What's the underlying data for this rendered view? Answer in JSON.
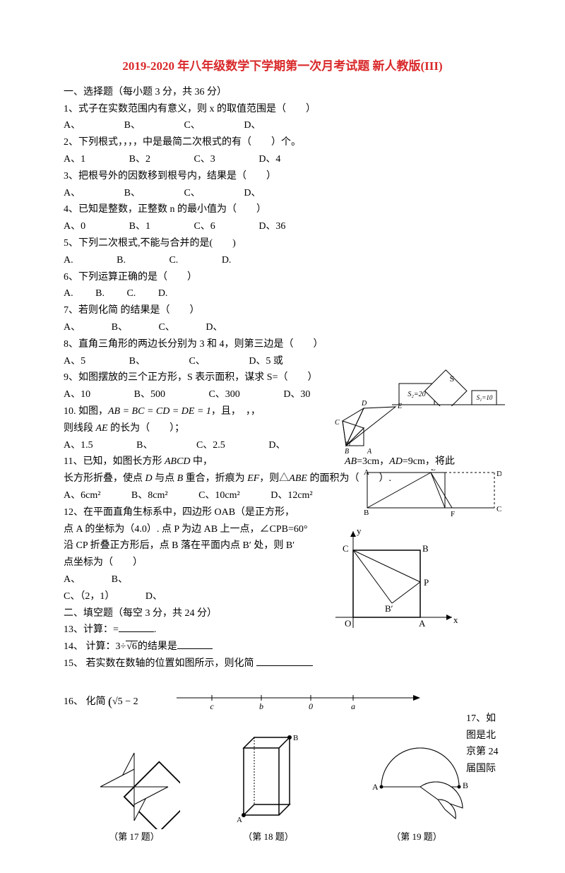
{
  "title": "2019-2020 年八年级数学下学期第一次月考试题 新人教版(III)",
  "s1": {
    "head": "一、选择题（每小题 3 分，共 36 分）"
  },
  "q1": {
    "text": "1、式子在实数范围内有意义，则 x 的取值范围是（　　）",
    "a": "A、",
    "b": "B、",
    "c": "C、",
    "d": "D、"
  },
  "q2": {
    "text": "2、下列根式，，，，中是最简二次根式的有（　　）个。",
    "a": "A、1",
    "b": "B、2",
    "c": "C、3",
    "d": "D、4"
  },
  "q3": {
    "text": "3、把根号外的因数移到根号内，结果是（　　）",
    "a": "A、",
    "b": "B、",
    "c": "C、",
    "d": "D、"
  },
  "q4": {
    "text": "4、已知是整数，正整数 n 的最小值为（　　）",
    "a": "A、0",
    "b": "B、1",
    "c": "C、6",
    "d": "D、36"
  },
  "q5": {
    "text": "5、下列二次根式,不能与合并的是(　　)",
    "a": "A.",
    "b": "B.",
    "c": "C.",
    "d": "D."
  },
  "q6": {
    "text": "6、下列运算正确的是（　　）",
    "a": "A.",
    "b": "B.",
    "c": "C.",
    "d": "D."
  },
  "q7": {
    "text": "7、若则化简 的结果是（　　）",
    "a": "A、",
    "b": "B、",
    "c": "C、",
    "d": "D、"
  },
  "q8": {
    "text": "8、直角三角形的两边长分别为 3 和 4，则第三边是（　　）",
    "a": "A、5",
    "b": "B、",
    "c": "C、",
    "d": "D、5 或"
  },
  "q9": {
    "text": "9、如图摆放的三个正方形，S 表示面积，谋求 S=（　　）",
    "a": "A、10",
    "b": "B、500",
    "c": "C、300",
    "d": "D、30",
    "fig": {
      "s2": "S₂=20",
      "s": "S",
      "s1": "S₁=10",
      "colors": {
        "box": "#ffffff",
        "diamond": "#ffffff",
        "stroke": "#000000"
      }
    }
  },
  "q10": {
    "pre": "10. 如图，",
    "formula": "AB = BC = CD = DE = 1",
    "post": "，且，　，，",
    "text2_pre": "则线段 ",
    "text2_var": "AE",
    "text2_post": " 的长为（　　）；",
    "a": "A、1.5",
    "b": "B、",
    "c": "C、2.5",
    "d": "D、",
    "fig": {
      "A": "A",
      "B": "B",
      "C": "C",
      "D": "D",
      "E": "E",
      "stroke": "#000000"
    }
  },
  "q11": {
    "pre": "11、已知，如图长方形 ",
    "var1": "ABCD",
    "mid": " 中，",
    "dim1_var": "AB",
    "dim1_eq": "=3cm，",
    "dim2_var": "AD",
    "dim2_eq": "=9cm，将此",
    "line2_a": "长方形折叠，使点 ",
    "line2_v1": "D",
    "line2_b": " 与点 ",
    "line2_v2": "B",
    "line2_c": " 重合，折痕为 ",
    "line2_v3": "EF",
    "line2_d": "，则△",
    "line2_v4": "ABE",
    "line2_e": " 的面积为（　　）.",
    "a": "A、6cm²",
    "b": "B、8cm²",
    "c": "C、10cm²",
    "d": "D、12cm²",
    "fig": {
      "A": "A",
      "B": "B",
      "C": "C",
      "D": "D",
      "E": "E",
      "F": "F",
      "stroke": "#000000"
    }
  },
  "q12": {
    "l1": "12、在平面直角生标系中，四边形 OAB（是正方形，",
    "l2": "点 A 的坐标为（4.0）. 点 P 为边 AB 上一点，∠CPB=60°",
    "l3": "沿 CP 折叠正方形后，点 B 落在平面内点 B′ 处，则 B′",
    "l4": "点坐标为（　　）",
    "a": "A、",
    "b": "B、",
    "c": "C、（2，1）",
    "d": "D、",
    "fig": {
      "O": "O",
      "A": "A",
      "B": "B",
      "C": "C",
      "P": "P",
      "Bp": "B′",
      "x": "x",
      "y": "y",
      "stroke": "#000000"
    }
  },
  "s2": {
    "head": "二、填空题（每空 3 分，共 24 分）"
  },
  "q13": {
    "text": "13、计算：=",
    "tail": "."
  },
  "q14": {
    "text": "14、 计算：3÷",
    "sqrt": "√6",
    "tail": "的结果是"
  },
  "q15": {
    "text": "15、 若实数在数轴的位置如图所示，则化简"
  },
  "q16": {
    "text": "16、 化简",
    "expr_open": "(",
    "expr_sqrt": "√5",
    "expr_rest": " − 2",
    "numline": {
      "labels": [
        "c",
        "b",
        "0",
        "a"
      ],
      "positions": [
        60,
        130,
        200,
        260
      ],
      "total": 360
    }
  },
  "q17": {
    "a": "17、如",
    "b": "图是北",
    "c": "京第 24",
    "d": "届国际"
  },
  "figs": {
    "f17": {
      "label": "（第 17 题）"
    },
    "f18": {
      "label": "（第 18 题）",
      "A": "A",
      "B": "B"
    },
    "f19": {
      "label": "（第 19 题）",
      "A": "A",
      "B": "B"
    }
  },
  "colors": {
    "title": "#d9292b",
    "text": "#000000",
    "bg": "#ffffff"
  }
}
